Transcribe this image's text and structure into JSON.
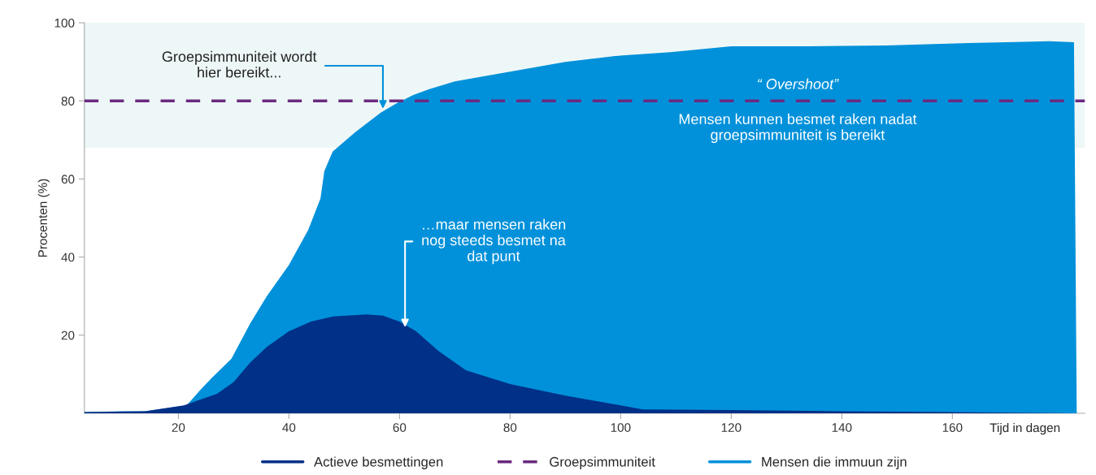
{
  "chart_data": {
    "type": "area",
    "ylabel": "Procenten (%)",
    "xlabel": "Tijd in dagen",
    "xlim": [
      3,
      184
    ],
    "xticks": [
      20,
      40,
      60,
      80,
      100,
      120,
      140,
      160
    ],
    "ylim": [
      0,
      100
    ],
    "yticks": [
      20,
      40,
      60,
      80,
      100
    ],
    "grid": false,
    "legend": "bottom",
    "series": [
      {
        "name": "Actieve besmettingen",
        "color": "#003087",
        "x": [
          3,
          14,
          21,
          27,
          30,
          33,
          36,
          40,
          44,
          48,
          54,
          57,
          60,
          63,
          67,
          72,
          80,
          90,
          100,
          104,
          120,
          140,
          160,
          175,
          182
        ],
        "values": [
          0.3,
          0.5,
          2,
          5,
          8,
          13,
          17,
          21,
          23.5,
          24.8,
          25.3,
          25,
          23.5,
          21,
          16,
          11,
          7.5,
          4.5,
          2,
          1,
          0.8,
          0.5,
          0.3,
          0.1,
          0
        ]
      },
      {
        "name": "Mensen die immuun zijn",
        "color": "#0091da",
        "x": [
          3,
          10,
          14,
          21.5,
          24,
          26,
          29.6,
          33,
          36,
          40,
          43.5,
          45.7,
          46.4,
          47.9,
          52,
          56.6,
          59.6,
          62.5,
          65.4,
          70,
          80,
          90,
          99,
          109,
          120,
          134,
          148,
          163,
          177.5,
          182,
          182.5
        ],
        "values": [
          0.3,
          0.5,
          0.5,
          2,
          6,
          9,
          14,
          23,
          30,
          38,
          47,
          55,
          62,
          67,
          72,
          77,
          79.5,
          81.5,
          83,
          85,
          87.5,
          90,
          91.5,
          92.5,
          94,
          94,
          94.2,
          94.8,
          95.3,
          95,
          0
        ]
      }
    ],
    "ref_lines": [
      {
        "axis": "y",
        "value": 80,
        "label": "Groepsimmuniteit",
        "color": "#6a2a7f",
        "line_style": "dashed"
      }
    ],
    "bands": [
      {
        "axis": "y",
        "from": 68,
        "to": 100,
        "color": "#eef7f7"
      }
    ],
    "annotations": [
      {
        "text": "Groepsimmuniteit wordt\nhier bereikt...",
        "x": 57,
        "y": 78
      },
      {
        "text": "…maar mensen raken\nnog steeds besmet na\ndat punt",
        "x": 61,
        "y": 22
      },
      "“ Overshoot”",
      "Mensen kunnen besmet raken nadat\ngroepsimmuniteit is bereikt"
    ]
  }
}
